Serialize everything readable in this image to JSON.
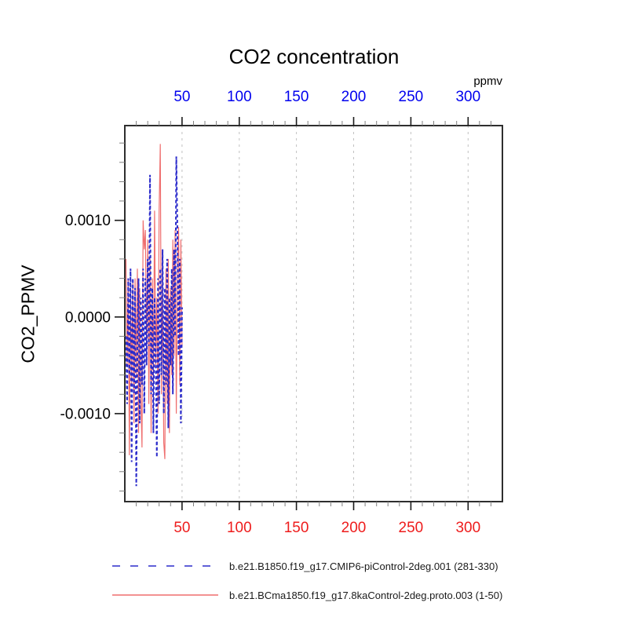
{
  "chart_data": {
    "type": "line",
    "title": "CO2 concentration",
    "top_axis_unit": "ppmv",
    "ylabel": "CO2_PPMV",
    "xlim": [
      0,
      330
    ],
    "ylim": [
      -0.00191,
      0.00198
    ],
    "x_major_ticks": [
      50,
      100,
      150,
      200,
      250,
      300
    ],
    "x_minor_step": 10,
    "y_major_ticks": [
      {
        "value": 0.001,
        "label": "0.0010"
      },
      {
        "value": 0.0,
        "label": "0.0000"
      },
      {
        "value": -0.001,
        "label": "-0.0010"
      }
    ],
    "y_minor_step": 0.0002,
    "grid": "vertical-dashed-at-x-major",
    "legend_position": "below-plot",
    "axis_label_colors": {
      "top": "#0000ee",
      "bottom": "#ee1c1c",
      "left": "#000000"
    },
    "x": [
      1,
      2,
      3,
      4,
      5,
      6,
      7,
      8,
      9,
      10,
      11,
      12,
      13,
      14,
      15,
      16,
      17,
      18,
      19,
      20,
      21,
      22,
      23,
      24,
      25,
      26,
      27,
      28,
      29,
      30,
      31,
      32,
      33,
      34,
      35,
      36,
      37,
      38,
      39,
      40,
      41,
      42,
      43,
      44,
      45,
      46,
      47,
      48,
      49,
      50
    ],
    "series": [
      {
        "name": "b.e21.B1850.f19_g17.CMIP6-piControl-2deg.001 (281-330)",
        "color": "#2b2bcb",
        "style": "dashed",
        "values": [
          -0.0002,
          -0.0009,
          0.0004,
          -0.0006,
          0.0005,
          -0.0015,
          0.0004,
          -0.0008,
          0.0003,
          -0.00175,
          -0.0004,
          0.0004,
          -0.0011,
          0.0002,
          -0.0007,
          0.0005,
          -0.001,
          0.0004,
          -0.0005,
          0.0006,
          -0.0003,
          0.00147,
          -0.0008,
          0.0003,
          -0.0012,
          0.0002,
          -0.0005,
          -0.00145,
          0.0004,
          -0.0009,
          0.0005,
          -0.0006,
          0.0007,
          -0.001,
          0.0003,
          -0.0007,
          0.0006,
          -0.00115,
          0.0002,
          -0.0005,
          0.0005,
          -0.0008,
          0.0007,
          -0.0002,
          0.00166,
          0.0009,
          -0.0004,
          0.0006,
          -0.0011,
          0.0001
        ]
      },
      {
        "name": "b.e21.BCma1850.f19_g17.8kaControl-2deg.proto.003 (1-50)",
        "color": "#ef6f6f",
        "style": "solid",
        "values": [
          0.0006,
          -0.0005,
          0.0004,
          -0.00143,
          0.0003,
          -0.0007,
          0.00035,
          -0.0011,
          0.0004,
          -0.0006,
          0.0005,
          -0.0012,
          0.0003,
          -0.0008,
          -0.00135,
          0.001,
          0.0007,
          0.0009,
          -0.0004,
          0.0008,
          -0.0009,
          0.0006,
          -0.0012,
          0.0004,
          -0.0007,
          0.0011,
          -0.0005,
          0.0002,
          -0.001,
          0.00109,
          0.00179,
          -0.0008,
          0.0004,
          -0.0013,
          -0.00147,
          0.0005,
          -0.0009,
          0.0006,
          -0.0012,
          0.0003,
          -0.0006,
          0.0008,
          -0.0004,
          0.0009,
          -0.001,
          0.0005,
          0.00093,
          -0.0007,
          0.0008,
          -0.0003
        ]
      }
    ]
  }
}
